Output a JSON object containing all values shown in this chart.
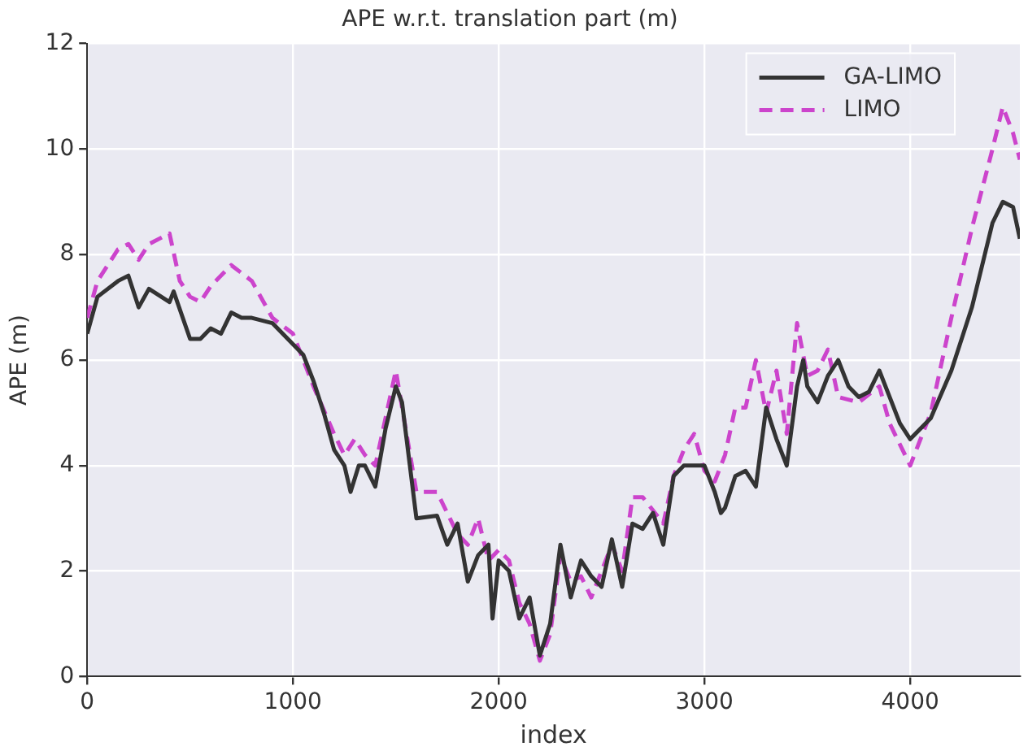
{
  "chart_data": {
    "type": "line",
    "title": "APE w.r.t. translation part (m)",
    "xlabel": "index",
    "ylabel": "APE (m)",
    "xlim": [
      0,
      4533
    ],
    "xticks": [
      0,
      1000,
      2000,
      3000,
      4000
    ],
    "ylim": [
      0,
      12
    ],
    "yticks": [
      0,
      2,
      4,
      6,
      8,
      10,
      12
    ],
    "grid": true,
    "legend": "top right",
    "marker": "none",
    "series": [
      {
        "name": "GA-LIMO",
        "color": "#333333",
        "line_style": "solid",
        "x": [
          0,
          50,
          150,
          200,
          250,
          300,
          400,
          420,
          500,
          550,
          600,
          650,
          700,
          750,
          800,
          900,
          1000,
          1050,
          1100,
          1150,
          1200,
          1250,
          1280,
          1320,
          1350,
          1400,
          1450,
          1500,
          1530,
          1600,
          1700,
          1750,
          1800,
          1850,
          1900,
          1950,
          1970,
          2000,
          2050,
          2100,
          2150,
          2200,
          2250,
          2300,
          2350,
          2400,
          2450,
          2500,
          2550,
          2600,
          2650,
          2700,
          2750,
          2800,
          2850,
          2900,
          2950,
          3000,
          3050,
          3080,
          3100,
          3150,
          3200,
          3250,
          3300,
          3350,
          3400,
          3450,
          3480,
          3500,
          3550,
          3600,
          3650,
          3700,
          3750,
          3800,
          3850,
          3900,
          3950,
          4000,
          4100,
          4200,
          4300,
          4400,
          4450,
          4500,
          4533
        ],
        "values": [
          6.5,
          7.2,
          7.5,
          7.6,
          7.0,
          7.35,
          7.1,
          7.3,
          6.4,
          6.4,
          6.6,
          6.5,
          6.9,
          6.8,
          6.8,
          6.7,
          6.3,
          6.1,
          5.6,
          5.0,
          4.3,
          4.0,
          3.5,
          4.0,
          4.0,
          3.6,
          4.7,
          5.5,
          5.2,
          3.0,
          3.05,
          2.5,
          2.9,
          1.8,
          2.3,
          2.5,
          1.1,
          2.2,
          2.0,
          1.1,
          1.5,
          0.4,
          1.0,
          2.5,
          1.5,
          2.2,
          1.9,
          1.7,
          2.6,
          1.7,
          2.9,
          2.8,
          3.1,
          2.5,
          3.8,
          4.0,
          4.0,
          4.0,
          3.5,
          3.1,
          3.2,
          3.8,
          3.9,
          3.6,
          5.1,
          4.5,
          4.0,
          5.5,
          6.0,
          5.5,
          5.2,
          5.7,
          6.0,
          5.5,
          5.3,
          5.4,
          5.8,
          5.3,
          4.8,
          4.5,
          4.9,
          5.8,
          7.0,
          8.6,
          9.0,
          8.9,
          8.3
        ]
      },
      {
        "name": "LIMO",
        "color": "#cc44cc",
        "line_style": "dashed",
        "x": [
          0,
          50,
          150,
          200,
          250,
          300,
          400,
          450,
          500,
          550,
          600,
          700,
          800,
          900,
          1000,
          1050,
          1100,
          1200,
          1250,
          1300,
          1350,
          1400,
          1500,
          1600,
          1700,
          1750,
          1800,
          1850,
          1900,
          1950,
          2000,
          2050,
          2100,
          2150,
          2200,
          2250,
          2300,
          2350,
          2400,
          2450,
          2500,
          2550,
          2600,
          2650,
          2700,
          2800,
          2850,
          2900,
          2950,
          3000,
          3050,
          3100,
          3150,
          3200,
          3250,
          3300,
          3350,
          3400,
          3450,
          3500,
          3550,
          3600,
          3650,
          3750,
          3850,
          3900,
          4000,
          4100,
          4200,
          4300,
          4400,
          4450,
          4500,
          4533
        ],
        "values": [
          6.8,
          7.5,
          8.1,
          8.2,
          7.9,
          8.2,
          8.4,
          7.5,
          7.2,
          7.1,
          7.4,
          7.8,
          7.5,
          6.8,
          6.5,
          6.0,
          5.5,
          4.6,
          4.2,
          4.5,
          4.2,
          4.0,
          5.8,
          3.5,
          3.5,
          3.1,
          2.7,
          2.5,
          3.0,
          2.2,
          2.4,
          2.2,
          1.4,
          1.0,
          0.3,
          0.8,
          2.3,
          1.8,
          1.9,
          1.5,
          2.0,
          2.5,
          2.0,
          3.4,
          3.4,
          2.9,
          3.8,
          4.3,
          4.6,
          3.9,
          3.7,
          4.2,
          5.1,
          5.1,
          6.0,
          5.0,
          5.8,
          4.6,
          6.7,
          5.7,
          5.8,
          6.2,
          5.3,
          5.2,
          5.5,
          4.8,
          4.0,
          5.0,
          6.8,
          8.5,
          10.0,
          10.8,
          10.3,
          9.8
        ]
      }
    ]
  }
}
